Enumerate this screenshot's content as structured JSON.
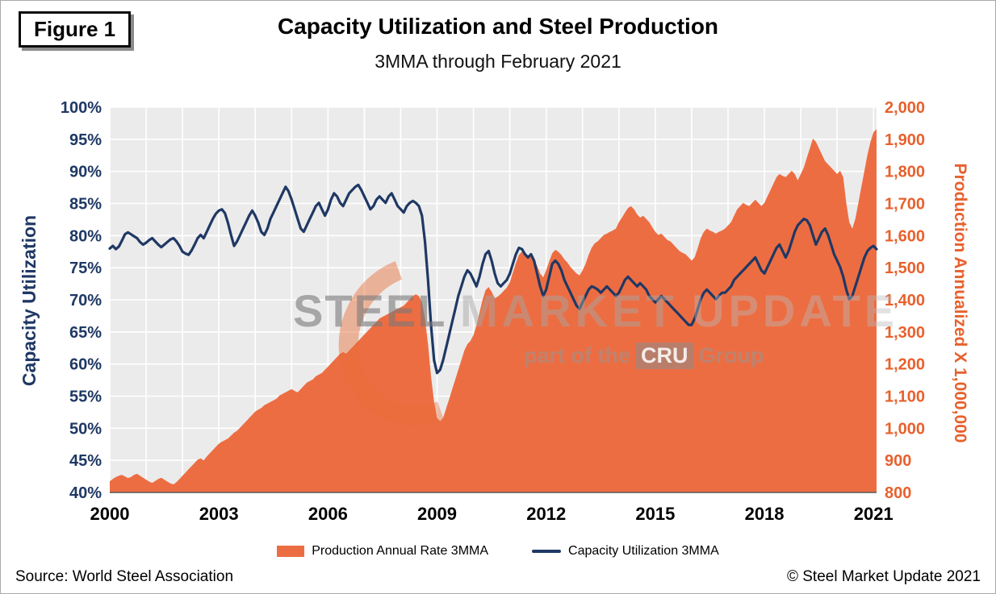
{
  "page": {
    "figure_label": "Figure 1",
    "title": "Capacity Utilization and Steel Production",
    "subtitle": "3MMA through February 2021",
    "source": "Source: World Steel Association",
    "copyright": "© Steel Market Update 2021"
  },
  "watermark": {
    "word1": "STEEL",
    "word2": "MARKET",
    "word3": "UPDATE",
    "tagline_pre": "part of the",
    "tagline_box": "CRU",
    "tagline_post": "Group"
  },
  "colors": {
    "utilization": "#1F3864",
    "production_fill": "#ED6D42",
    "production_text": "#E7612D",
    "plot_bg": "#EBEBEB",
    "grid": "#FFFFFF",
    "axis_line": "#595959",
    "x_label": "#000000"
  },
  "chart_data": {
    "type": "area+line",
    "title": "Capacity Utilization and Steel Production",
    "subtitle": "3MMA through February 2021",
    "x_start_year": 2000,
    "x_end_label": "February 2021",
    "points_per_year": 12,
    "x_ticks": [
      2000,
      2003,
      2006,
      2009,
      2012,
      2015,
      2018,
      2021
    ],
    "left_axis": {
      "title": "Capacity Utilization",
      "min": 40,
      "max": 100,
      "step": 5,
      "unit": "%"
    },
    "right_axis": {
      "title": "Production Annualized X 1,000,000",
      "min": 800,
      "max": 2000,
      "step": 100
    },
    "grid": true,
    "legend_position": "bottom",
    "series": [
      {
        "name": "Production Annual Rate 3MMA",
        "type": "area",
        "axis": "right",
        "values": [
          835,
          842,
          848,
          852,
          855,
          850,
          845,
          848,
          855,
          858,
          852,
          846,
          840,
          834,
          830,
          836,
          842,
          846,
          840,
          834,
          828,
          825,
          832,
          842,
          852,
          862,
          872,
          882,
          892,
          902,
          906,
          900,
          912,
          922,
          932,
          942,
          952,
          958,
          963,
          968,
          977,
          986,
          992,
          1002,
          1012,
          1022,
          1032,
          1042,
          1052,
          1058,
          1063,
          1072,
          1077,
          1082,
          1087,
          1092,
          1102,
          1107,
          1112,
          1117,
          1122,
          1116,
          1112,
          1122,
          1132,
          1142,
          1147,
          1152,
          1162,
          1167,
          1172,
          1182,
          1192,
          1202,
          1212,
          1222,
          1232,
          1237,
          1232,
          1242,
          1252,
          1262,
          1272,
          1282,
          1292,
          1302,
          1312,
          1322,
          1332,
          1342,
          1347,
          1352,
          1357,
          1362,
          1367,
          1372,
          1377,
          1382,
          1392,
          1402,
          1412,
          1417,
          1412,
          1392,
          1342,
          1262,
          1162,
          1082,
          1032,
          1022,
          1032,
          1062,
          1092,
          1122,
          1152,
          1182,
          1212,
          1242,
          1262,
          1272,
          1290,
          1320,
          1360,
          1400,
          1430,
          1440,
          1425,
          1405,
          1410,
          1418,
          1428,
          1438,
          1455,
          1485,
          1515,
          1540,
          1550,
          1545,
          1532,
          1538,
          1526,
          1506,
          1482,
          1470,
          1492,
          1520,
          1545,
          1556,
          1550,
          1540,
          1526,
          1516,
          1502,
          1492,
          1482,
          1476,
          1492,
          1512,
          1540,
          1562,
          1576,
          1582,
          1592,
          1602,
          1606,
          1612,
          1616,
          1622,
          1642,
          1656,
          1672,
          1686,
          1692,
          1682,
          1666,
          1656,
          1662,
          1652,
          1642,
          1626,
          1612,
          1602,
          1606,
          1596,
          1586,
          1582,
          1572,
          1562,
          1552,
          1546,
          1542,
          1532,
          1522,
          1532,
          1562,
          1592,
          1612,
          1622,
          1616,
          1612,
          1606,
          1612,
          1616,
          1622,
          1632,
          1642,
          1662,
          1682,
          1692,
          1702,
          1696,
          1692,
          1702,
          1712,
          1702,
          1692,
          1702,
          1722,
          1742,
          1762,
          1782,
          1792,
          1786,
          1782,
          1792,
          1802,
          1792,
          1772,
          1792,
          1812,
          1842,
          1872,
          1902,
          1892,
          1872,
          1852,
          1832,
          1822,
          1812,
          1802,
          1792,
          1802,
          1782,
          1702,
          1642,
          1622,
          1652,
          1702,
          1752,
          1802,
          1852,
          1892,
          1922,
          1932
        ]
      },
      {
        "name": "Capacity Utilization 3MMA",
        "type": "line",
        "axis": "left",
        "values": [
          78.0,
          78.4,
          77.9,
          78.3,
          79.2,
          80.2,
          80.5,
          80.2,
          79.9,
          79.6,
          79.0,
          78.6,
          78.9,
          79.3,
          79.6,
          79.1,
          78.6,
          78.2,
          78.6,
          79.0,
          79.4,
          79.6,
          79.1,
          78.4,
          77.5,
          77.2,
          77.0,
          77.7,
          78.6,
          79.6,
          80.1,
          79.6,
          80.6,
          81.6,
          82.6,
          83.4,
          83.9,
          84.1,
          83.5,
          82.0,
          80.1,
          78.4,
          79.1,
          80.1,
          81.1,
          82.1,
          83.1,
          83.9,
          83.1,
          82.0,
          80.6,
          80.1,
          81.1,
          82.6,
          83.6,
          84.6,
          85.6,
          86.6,
          87.6,
          86.9,
          85.6,
          84.1,
          82.6,
          81.1,
          80.6,
          81.6,
          82.6,
          83.6,
          84.6,
          85.1,
          84.1,
          83.1,
          84.1,
          85.6,
          86.6,
          86.1,
          85.1,
          84.6,
          85.6,
          86.6,
          87.1,
          87.6,
          87.9,
          87.1,
          86.1,
          85.1,
          84.1,
          84.6,
          85.6,
          86.1,
          85.6,
          85.1,
          86.1,
          86.6,
          85.6,
          84.6,
          84.1,
          83.6,
          84.6,
          85.1,
          85.4,
          85.1,
          84.6,
          83.1,
          79.1,
          73.1,
          66.1,
          60.6,
          58.6,
          59.1,
          60.6,
          62.6,
          64.6,
          66.6,
          68.6,
          70.6,
          72.1,
          73.6,
          74.6,
          74.1,
          73.1,
          72.1,
          73.6,
          75.6,
          77.1,
          77.6,
          76.1,
          74.1,
          72.6,
          72.1,
          72.6,
          73.1,
          74.1,
          75.6,
          77.1,
          78.1,
          77.9,
          77.1,
          76.6,
          77.1,
          76.1,
          74.1,
          72.1,
          70.6,
          71.6,
          73.6,
          75.6,
          76.1,
          75.6,
          74.6,
          73.1,
          72.1,
          71.1,
          70.1,
          69.1,
          68.6,
          69.6,
          70.6,
          71.6,
          72.1,
          71.9,
          71.6,
          71.1,
          71.6,
          72.1,
          71.6,
          71.1,
          70.6,
          71.1,
          72.1,
          73.1,
          73.6,
          73.1,
          72.6,
          72.1,
          72.6,
          72.1,
          71.6,
          70.6,
          70.1,
          69.6,
          70.1,
          70.6,
          70.1,
          69.6,
          69.1,
          68.6,
          68.1,
          67.6,
          67.1,
          66.6,
          66.1,
          66.1,
          67.1,
          68.6,
          70.1,
          71.1,
          71.6,
          71.1,
          70.6,
          70.1,
          70.6,
          71.1,
          71.1,
          71.6,
          72.1,
          73.1,
          73.6,
          74.1,
          74.6,
          75.1,
          75.6,
          76.1,
          76.6,
          75.6,
          74.6,
          74.1,
          75.1,
          76.1,
          77.1,
          78.1,
          78.6,
          77.6,
          76.6,
          77.6,
          79.1,
          80.6,
          81.6,
          82.1,
          82.6,
          82.4,
          81.6,
          80.1,
          78.6,
          79.6,
          80.6,
          81.1,
          80.1,
          78.6,
          77.1,
          76.1,
          75.1,
          73.6,
          71.6,
          70.1,
          70.6,
          72.1,
          73.6,
          75.1,
          76.6,
          77.6,
          78.1,
          78.4,
          77.9
        ]
      }
    ]
  }
}
